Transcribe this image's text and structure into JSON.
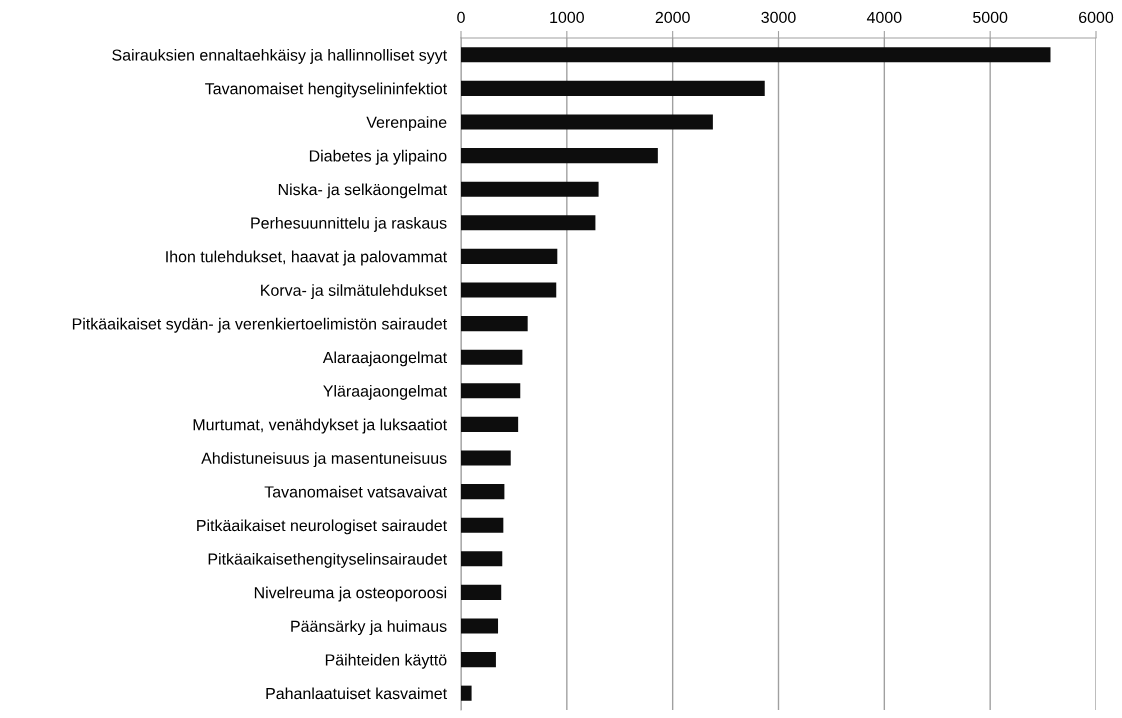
{
  "chart_data": {
    "type": "bar",
    "orientation": "horizontal",
    "categories": [
      "Sairauksien ennaltaehkäisy ja hallinnolliset syyt",
      "Tavanomaiset hengityselininfektiot",
      "Verenpaine",
      "Diabetes ja ylipaino",
      "Niska- ja selkäongelmat",
      "Perhesuunnittelu ja raskaus",
      "Ihon tulehdukset, haavat ja palovammat",
      "Korva- ja silmätulehdukset",
      "Pitkäaikaiset sydän- ja verenkiertoelimistön sairaudet",
      "Alaraajaongelmat",
      "Yläraajaongelmat",
      "Murtumat, venähdykset ja luksaatiot",
      "Ahdistuneisuus ja masentuneisuus",
      "Tavanomaiset vatsavaivat",
      "Pitkäaikaiset neurologiset sairaudet",
      "Pitkäaikaisethengityselinsairaudet",
      "Nivelreuma ja osteoporoosi",
      "Päänsärky ja huimaus",
      "Päihteiden käyttö",
      "Pahanlaatuiset kasvaimet"
    ],
    "values": [
      5570,
      2870,
      2380,
      1860,
      1300,
      1270,
      910,
      900,
      630,
      580,
      560,
      540,
      470,
      410,
      400,
      390,
      380,
      350,
      330,
      100
    ],
    "color": "#0d0d0d",
    "xlim": [
      0,
      6000
    ],
    "xticks": [
      0,
      1000,
      2000,
      3000,
      4000,
      5000,
      6000
    ],
    "grid": "x"
  }
}
